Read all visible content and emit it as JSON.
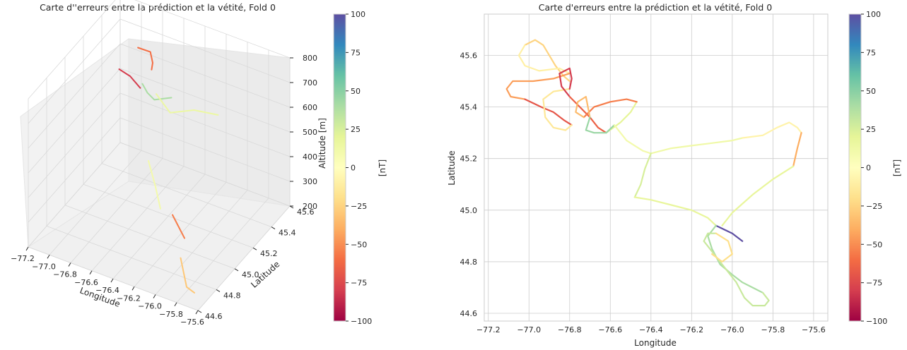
{
  "figure": {
    "left_title": "Carte d''erreurs entre la prédiction et la vétité, Fold 0",
    "right_title": "Carte d'erreurs entre la prédiction et la vétité, Fold 0"
  },
  "colors": {
    "background": "#ffffff",
    "grid": "#cccccc",
    "axes": "#cccccc",
    "pane": "#f2f2f2",
    "colormap": "Spectral"
  },
  "chart_data": [
    {
      "type": "scatter",
      "subtype": "3d-trajectory",
      "title": "Carte d''erreurs entre la prédiction et la vétité, Fold 0",
      "xlabel": "Longitude",
      "ylabel": "Latitude",
      "zlabel": "Altitude [m]",
      "xlim": [
        -77.2,
        -75.6
      ],
      "ylim": [
        44.6,
        45.6
      ],
      "zlim": [
        200,
        800
      ],
      "xticks": [
        "−77.2",
        "−77.0",
        "−76.8",
        "−76.6",
        "−76.4",
        "−76.2",
        "−76.0",
        "−75.8",
        "−75.6"
      ],
      "yticks": [
        "44.6",
        "44.8",
        "45.0",
        "45.2",
        "45.4",
        "45.6"
      ],
      "zticks": [
        "200",
        "300",
        "400",
        "500",
        "600",
        "700",
        "800"
      ],
      "colorbar": {
        "label": "[nT]",
        "range": [
          -100,
          100
        ],
        "ticks": [
          "−100",
          "−75",
          "−50",
          "−25",
          "0",
          "25",
          "50",
          "75",
          "100"
        ]
      },
      "segments": [
        {
          "x": [
            -77.05,
            -76.95,
            -76.85,
            -76.8
          ],
          "y": [
            45.62,
            45.64,
            45.55,
            45.48
          ],
          "z": [
            600,
            590,
            600,
            610
          ],
          "value": -60
        },
        {
          "x": [
            -77.08,
            -76.95,
            -76.82
          ],
          "y": [
            45.45,
            45.42,
            45.38
          ],
          "z": [
            580,
            585,
            575
          ],
          "value": -80
        },
        {
          "x": [
            -76.8,
            -76.7,
            -76.6,
            -76.5
          ],
          "y": [
            45.38,
            45.32,
            45.28,
            45.35
          ],
          "z": [
            595,
            600,
            605,
            600
          ],
          "value": 40
        },
        {
          "x": [
            -76.6,
            -76.4,
            -76.2,
            -76.0
          ],
          "y": [
            45.3,
            45.22,
            45.25,
            45.28
          ],
          "z": [
            620,
            610,
            640,
            640
          ],
          "value": 15
        },
        {
          "x": [
            -76.5,
            -76.4,
            -76.3
          ],
          "y": [
            45.1,
            45.06,
            45.0
          ],
          "z": [
            450,
            380,
            330
          ],
          "value": 10
        },
        {
          "x": [
            -76.1,
            -76.0,
            -75.9
          ],
          "y": [
            44.9,
            44.85,
            44.8
          ],
          "z": [
            380,
            370,
            360
          ],
          "value": -55
        },
        {
          "x": [
            -75.85,
            -75.75,
            -75.72
          ],
          "y": [
            44.7,
            44.65,
            44.7
          ],
          "z": [
            330,
            250,
            210
          ],
          "value": -30
        }
      ]
    },
    {
      "type": "line",
      "subtype": "colored-trajectory",
      "title": "Carte d'erreurs entre la prédiction et la vétité, Fold 0",
      "xlabel": "Longitude",
      "ylabel": "Latitude",
      "xlim": [
        -77.22,
        -75.53
      ],
      "ylim": [
        44.57,
        45.76
      ],
      "xticks": [
        -77.2,
        -77.0,
        -76.8,
        -76.6,
        -76.4,
        -76.2,
        -76.0,
        -75.8,
        -75.6
      ],
      "xtick_labels": [
        "−77.2",
        "−77.0",
        "−76.8",
        "−76.6",
        "−76.4",
        "−76.2",
        "−76.0",
        "−75.8",
        "−75.6"
      ],
      "yticks": [
        44.6,
        44.8,
        45.0,
        45.2,
        45.4,
        45.6
      ],
      "ytick_labels": [
        "44.6",
        "44.8",
        "45.0",
        "45.2",
        "45.4",
        "45.6"
      ],
      "grid": true,
      "colorbar": {
        "label": "[nT]",
        "range": [
          -100,
          100
        ],
        "ticks": [
          "−100",
          "−75",
          "−50",
          "−25",
          "0",
          "25",
          "50",
          "75",
          "100"
        ]
      },
      "segments": [
        {
          "x": [
            -77.02,
            -76.97,
            -76.93,
            -76.87,
            -76.83,
            -76.8
          ],
          "y": [
            45.64,
            45.66,
            45.64,
            45.56,
            45.52,
            45.5
          ],
          "value": -25
        },
        {
          "x": [
            -77.02,
            -77.05,
            -77.02,
            -76.95,
            -76.85,
            -76.8
          ],
          "y": [
            45.64,
            45.6,
            45.56,
            45.54,
            45.55,
            45.53
          ],
          "value": -10
        },
        {
          "x": [
            -76.8,
            -76.88,
            -76.98,
            -77.08,
            -77.11,
            -77.09,
            -77.02
          ],
          "y": [
            45.53,
            45.51,
            45.5,
            45.5,
            45.47,
            45.44,
            45.43
          ],
          "value": -45
        },
        {
          "x": [
            -77.02,
            -76.94,
            -76.88,
            -76.83,
            -76.79
          ],
          "y": [
            45.43,
            45.4,
            45.38,
            45.35,
            45.33
          ],
          "value": -70
        },
        {
          "x": [
            -76.79,
            -76.82,
            -76.88,
            -76.92,
            -76.93,
            -76.88,
            -76.8
          ],
          "y": [
            45.33,
            45.31,
            45.32,
            45.36,
            45.43,
            45.46,
            45.47
          ],
          "value": -15
        },
        {
          "x": [
            -76.8,
            -76.79,
            -76.8,
            -76.85,
            -76.84,
            -76.8
          ],
          "y": [
            45.47,
            45.51,
            45.55,
            45.53,
            45.48,
            45.44
          ],
          "value": -80
        },
        {
          "x": [
            -76.8,
            -76.75,
            -76.7,
            -76.66,
            -76.62
          ],
          "y": [
            45.44,
            45.4,
            45.36,
            45.32,
            45.3
          ],
          "value": -65
        },
        {
          "x": [
            -76.62,
            -76.55,
            -76.5,
            -76.47
          ],
          "y": [
            45.3,
            45.34,
            45.38,
            45.42
          ],
          "value": 20
        },
        {
          "x": [
            -76.47,
            -76.52,
            -76.6,
            -76.68,
            -76.73
          ],
          "y": [
            45.42,
            45.43,
            45.42,
            45.4,
            45.36
          ],
          "value": -55
        },
        {
          "x": [
            -76.73,
            -76.77,
            -76.76,
            -76.72,
            -76.7
          ],
          "y": [
            45.36,
            45.38,
            45.42,
            45.44,
            45.36
          ],
          "value": -35
        },
        {
          "x": [
            -76.7,
            -76.72,
            -76.68,
            -76.62,
            -76.58
          ],
          "y": [
            45.36,
            45.31,
            45.3,
            45.3,
            45.33
          ],
          "value": 45
        },
        {
          "x": [
            -76.58,
            -76.55,
            -76.52,
            -76.48,
            -76.44,
            -76.4
          ],
          "y": [
            45.33,
            45.3,
            45.27,
            45.25,
            45.23,
            45.22
          ],
          "value": 10
        },
        {
          "x": [
            -76.4,
            -76.3,
            -76.2,
            -76.1,
            -76.0,
            -75.95
          ],
          "y": [
            45.22,
            45.24,
            45.25,
            45.26,
            45.27,
            45.28
          ],
          "value": 12
        },
        {
          "x": [
            -75.95,
            -75.85,
            -75.78,
            -75.72,
            -75.68,
            -75.66
          ],
          "y": [
            45.28,
            45.29,
            45.32,
            45.34,
            45.32,
            45.3
          ],
          "value": -8
        },
        {
          "x": [
            -75.66,
            -75.68,
            -75.7
          ],
          "y": [
            45.3,
            45.24,
            45.17
          ],
          "value": -40
        },
        {
          "x": [
            -75.7,
            -75.8,
            -75.9,
            -76.0,
            -76.05
          ],
          "y": [
            45.17,
            45.12,
            45.06,
            44.99,
            44.94
          ],
          "value": 18
        },
        {
          "x": [
            -76.4,
            -76.43,
            -76.45,
            -76.48
          ],
          "y": [
            45.22,
            45.16,
            45.1,
            45.05
          ],
          "value": 25
        },
        {
          "x": [
            -76.48,
            -76.4,
            -76.3,
            -76.2,
            -76.12,
            -76.08
          ],
          "y": [
            45.05,
            45.04,
            45.02,
            45.0,
            44.97,
            44.94
          ],
          "value": 18
        },
        {
          "x": [
            -76.08,
            -76.0,
            -75.95
          ],
          "y": [
            44.94,
            44.91,
            44.88
          ],
          "value": 100
        },
        {
          "x": [
            -76.08,
            -76.12,
            -76.1,
            -76.06,
            -76.0,
            -75.95,
            -75.9,
            -75.85
          ],
          "y": [
            44.94,
            44.9,
            44.85,
            44.79,
            44.75,
            44.72,
            44.7,
            44.68
          ],
          "value": 40
        },
        {
          "x": [
            -75.85,
            -75.82,
            -75.84,
            -75.9,
            -75.94,
            -75.98,
            -76.04,
            -76.1,
            -76.14,
            -76.12,
            -76.08
          ],
          "y": [
            44.68,
            44.65,
            44.63,
            44.63,
            44.66,
            44.72,
            44.78,
            44.84,
            44.88,
            44.91,
            44.91
          ],
          "value": 30
        },
        {
          "x": [
            -76.08,
            -76.02,
            -76.0,
            -76.05,
            -76.1
          ],
          "y": [
            44.91,
            44.88,
            44.83,
            44.8,
            44.83
          ],
          "value": -20
        }
      ]
    }
  ]
}
